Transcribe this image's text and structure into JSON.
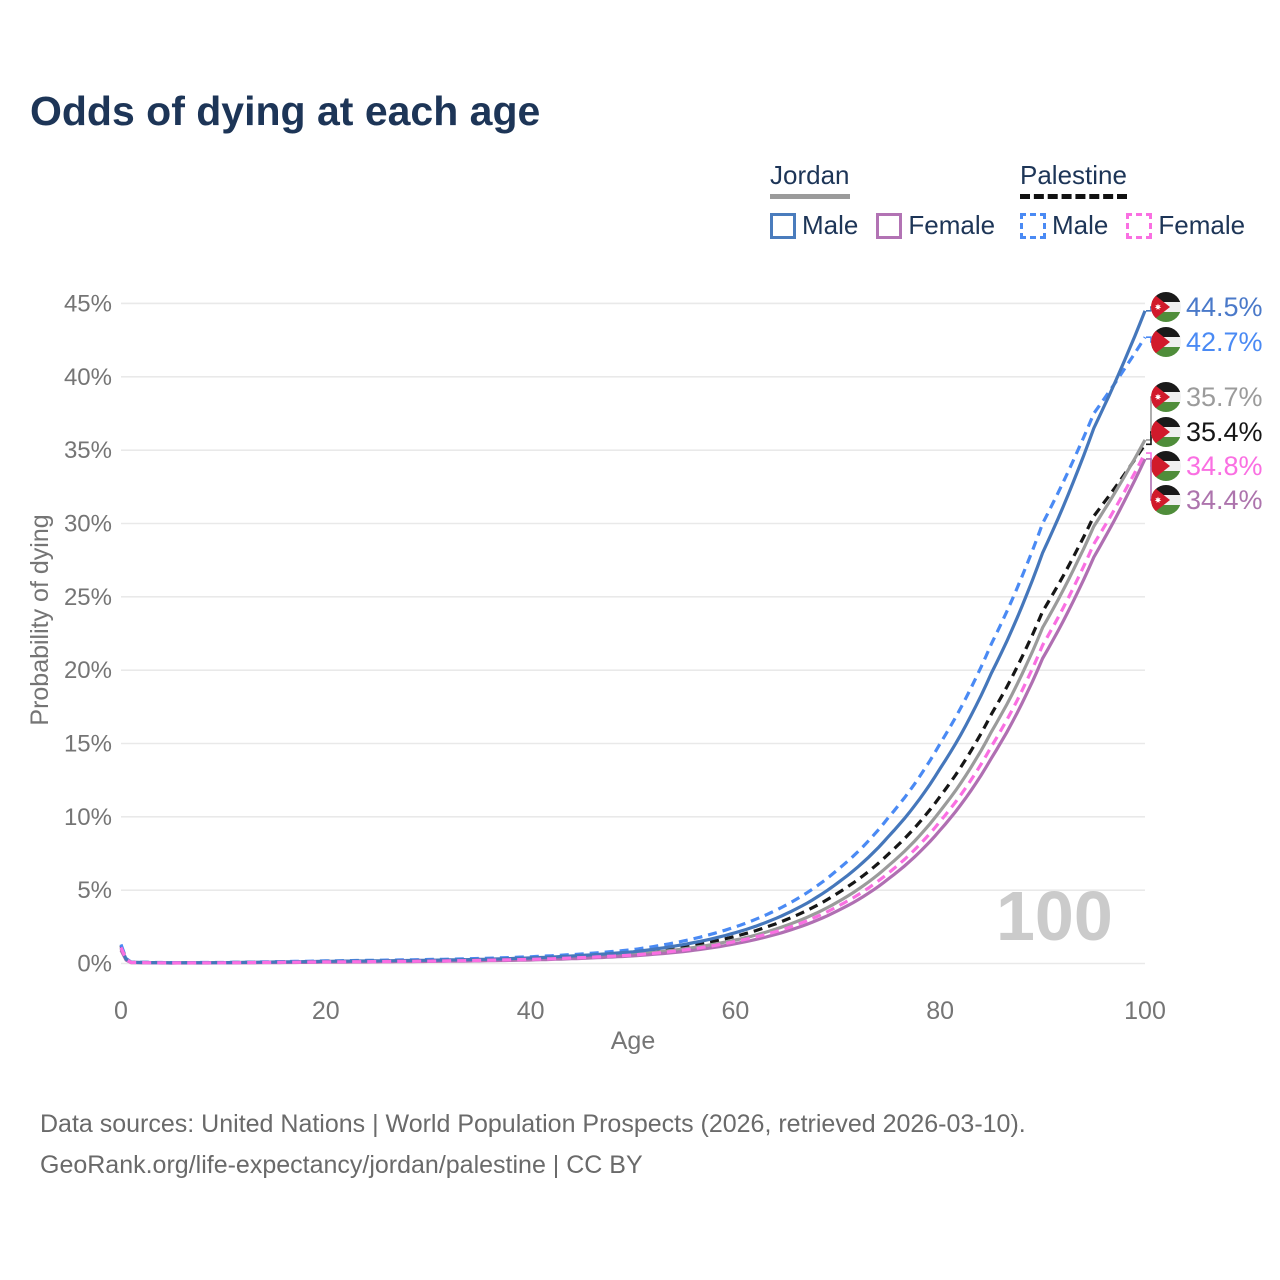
{
  "header": {
    "title": "Odds of dying at each age"
  },
  "legend": {
    "groups": [
      {
        "label": "Jordan",
        "line_style": "solid",
        "underline_color": "#9b9b9b",
        "items": [
          {
            "label": "Male",
            "color": "#4a7cbd"
          },
          {
            "label": "Female",
            "color": "#b273b4"
          }
        ]
      },
      {
        "label": "Palestine",
        "line_style": "dashed",
        "underline_color": "#111111",
        "items": [
          {
            "label": "Male",
            "color": "#4a8af4"
          },
          {
            "label": "Female",
            "color": "#fa6fe2"
          }
        ]
      }
    ]
  },
  "watermark": "100",
  "footer": {
    "line1": "Data sources: United Nations | World Population Prospects (2026, retrieved 2026-03-10).",
    "line2": "GeoRank.org/life-expectancy/jordan/palestine | CC BY"
  },
  "chart_data": {
    "type": "line",
    "title": "Odds of dying at each age",
    "xlabel": "Age",
    "ylabel": "Probability of dying",
    "xlim": [
      0,
      100
    ],
    "ylim": [
      0,
      45
    ],
    "x_ticks": [
      0,
      20,
      40,
      60,
      80,
      100
    ],
    "y_ticks": [
      "0%",
      "5%",
      "10%",
      "15%",
      "20%",
      "25%",
      "30%",
      "35%",
      "40%",
      "45%"
    ],
    "grid": "horizontal",
    "legend_position": "top-right",
    "x": [
      0,
      1,
      5,
      10,
      15,
      20,
      25,
      30,
      35,
      40,
      45,
      50,
      55,
      60,
      65,
      70,
      75,
      80,
      85,
      90,
      95,
      100
    ],
    "series": [
      {
        "name": "Jordan Male",
        "country": "Jordan",
        "sex": "Male",
        "line": "solid",
        "color": "#4577bb",
        "flag_icon": "jordan-flag",
        "end_label": "44.5%",
        "label_color": "#4a79c9",
        "values": [
          1.1,
          0.08,
          0.05,
          0.06,
          0.1,
          0.15,
          0.18,
          0.22,
          0.28,
          0.38,
          0.55,
          0.8,
          1.3,
          2.1,
          3.4,
          5.5,
          8.7,
          13.3,
          19.8,
          28.0,
          36.5,
          44.5
        ]
      },
      {
        "name": "Palestine Male",
        "country": "Palestine",
        "sex": "Male",
        "line": "dashed",
        "color": "#4a8af4",
        "flag_icon": "palestine-flag",
        "end_label": "42.7%",
        "label_color": "#4a8af4",
        "values": [
          1.3,
          0.09,
          0.06,
          0.07,
          0.12,
          0.18,
          0.22,
          0.27,
          0.34,
          0.46,
          0.65,
          0.95,
          1.55,
          2.5,
          4.0,
          6.4,
          10.0,
          15.0,
          21.8,
          30.0,
          37.5,
          42.7
        ]
      },
      {
        "name": "Jordan Total",
        "country": "Jordan",
        "sex": "Both",
        "line": "solid",
        "color": "#9b9b9b",
        "flag_icon": "jordan-flag",
        "end_label": "35.7%",
        "label_color": "#9b9b9b",
        "values": [
          1.0,
          0.07,
          0.04,
          0.05,
          0.08,
          0.11,
          0.14,
          0.17,
          0.22,
          0.3,
          0.43,
          0.63,
          1.0,
          1.6,
          2.6,
          4.2,
          6.7,
          10.4,
          15.8,
          22.9,
          29.8,
          35.7
        ]
      },
      {
        "name": "Palestine Total",
        "country": "Palestine",
        "sex": "Both",
        "line": "dashed",
        "color": "#161616",
        "flag_icon": "palestine-flag",
        "end_label": "35.4%",
        "label_color": "#161616",
        "values": [
          1.2,
          0.08,
          0.05,
          0.06,
          0.1,
          0.14,
          0.17,
          0.21,
          0.27,
          0.36,
          0.51,
          0.74,
          1.15,
          1.85,
          3.0,
          4.8,
          7.5,
          11.4,
          17.0,
          24.0,
          30.5,
          35.4
        ]
      },
      {
        "name": "Palestine Female",
        "country": "Palestine",
        "sex": "Female",
        "line": "dashed",
        "color": "#fa6fe2",
        "flag_icon": "palestine-flag",
        "end_label": "34.8%",
        "label_color": "#fa6fe2",
        "values": [
          1.1,
          0.07,
          0.04,
          0.05,
          0.08,
          0.11,
          0.13,
          0.16,
          0.21,
          0.28,
          0.4,
          0.58,
          0.92,
          1.5,
          2.4,
          3.9,
          6.2,
          9.7,
          14.8,
          21.7,
          28.6,
          34.8
        ]
      },
      {
        "name": "Jordan Female",
        "country": "Jordan",
        "sex": "Female",
        "line": "solid",
        "color": "#b06fb2",
        "flag_icon": "jordan-flag",
        "end_label": "34.4%",
        "label_color": "#ad74ad",
        "values": [
          0.9,
          0.06,
          0.03,
          0.04,
          0.06,
          0.09,
          0.11,
          0.14,
          0.18,
          0.24,
          0.35,
          0.52,
          0.82,
          1.35,
          2.2,
          3.6,
          5.8,
          9.1,
          14.0,
          20.8,
          27.7,
          34.4
        ]
      }
    ]
  }
}
